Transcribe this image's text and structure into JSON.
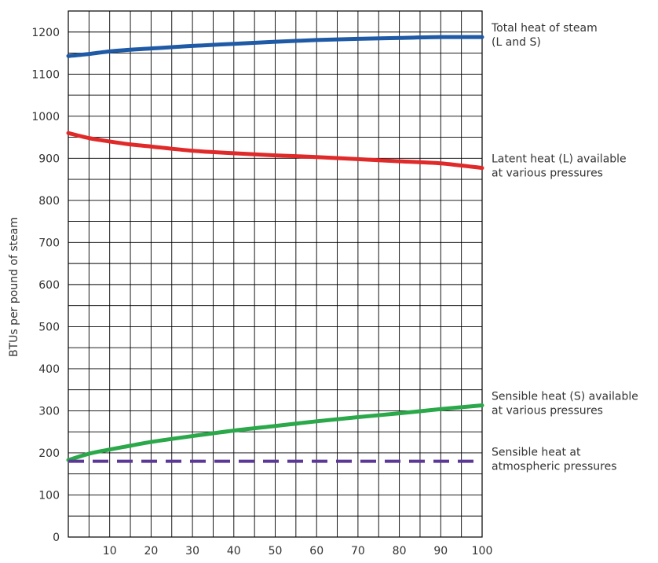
{
  "chart_data": {
    "type": "line",
    "title": "",
    "xlabel": "",
    "ylabel": "BTUs per pound of steam",
    "xlim": [
      0,
      100
    ],
    "ylim": [
      0,
      1250
    ],
    "x_ticks": [
      10,
      20,
      30,
      40,
      50,
      60,
      70,
      80,
      90,
      100
    ],
    "x_tick_labels": [
      "10",
      "20",
      "30",
      "40",
      "50",
      "60",
      "70",
      "80",
      "90",
      "100"
    ],
    "y_ticks": [
      0,
      100,
      200,
      300,
      400,
      500,
      600,
      700,
      800,
      900,
      1000,
      1100,
      1200
    ],
    "y_tick_labels": [
      "0",
      "100",
      "200",
      "300",
      "400",
      "500",
      "600",
      "700",
      "800",
      "900",
      "1000",
      "1100",
      "1200"
    ],
    "grid": true,
    "grid_x_step": 5,
    "grid_y_step": 50,
    "legend": "right-side labels",
    "series": [
      {
        "name": "Total heat of steam (L and S)",
        "label_lines": [
          "Total heat of steam",
          "(L and S)"
        ],
        "color": "#1f5aa6",
        "dashed": false,
        "x": [
          0,
          5,
          10,
          15,
          20,
          25,
          30,
          40,
          50,
          60,
          70,
          80,
          90,
          100
        ],
        "y": [
          1143,
          1148,
          1154,
          1158,
          1161,
          1164,
          1167,
          1172,
          1177,
          1181,
          1184,
          1186,
          1188,
          1188
        ]
      },
      {
        "name": "Latent heat (L) available at various pressures",
        "label_lines": [
          "Latent heat (L) available",
          "at various pressures"
        ],
        "color": "#e02a2a",
        "dashed": false,
        "x": [
          0,
          5,
          10,
          15,
          20,
          30,
          40,
          50,
          60,
          70,
          80,
          90,
          100
        ],
        "y": [
          960,
          948,
          940,
          933,
          928,
          918,
          912,
          907,
          903,
          898,
          893,
          888,
          877
        ]
      },
      {
        "name": "Sensible heat (S) available at various pressures",
        "label_lines": [
          "Sensible heat (S) available",
          "at various pressures"
        ],
        "color": "#2aa84a",
        "dashed": false,
        "x": [
          0,
          5,
          10,
          15,
          20,
          30,
          40,
          50,
          60,
          70,
          80,
          90,
          100
        ],
        "y": [
          183,
          198,
          208,
          217,
          226,
          240,
          253,
          264,
          275,
          285,
          294,
          304,
          313
        ]
      },
      {
        "name": "Sensible heat at atmospheric pressures",
        "label_lines": [
          "Sensible heat at",
          "atmospheric pressures"
        ],
        "color": "#5b3796",
        "dashed": true,
        "x": [
          0,
          100
        ],
        "y": [
          180,
          180
        ]
      }
    ]
  }
}
